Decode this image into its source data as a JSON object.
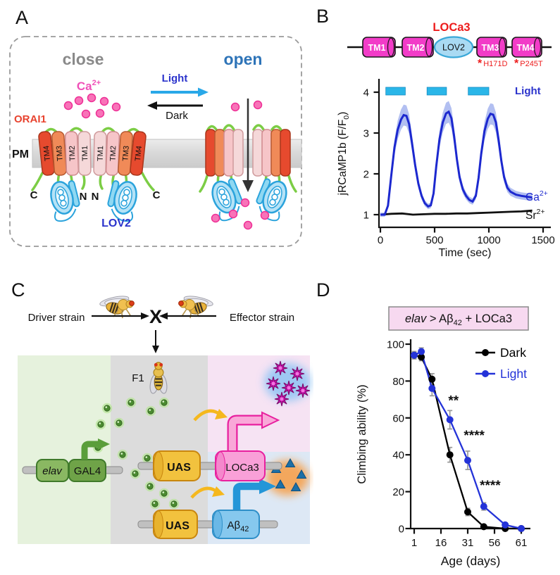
{
  "panels": {
    "A": {
      "label": "A",
      "close": "close",
      "open": "open",
      "ca": {
        "base": "Ca",
        "sup": "2+"
      },
      "light": "Light",
      "dark": "Dark",
      "orai1": "ORAI1",
      "pm": "PM",
      "c_left": "C",
      "n_left": "N",
      "n_right": "N",
      "c_right": "C",
      "lov2": "LOV2",
      "tm": [
        "TM4",
        "TM3",
        "TM2",
        "TM1",
        "TM1",
        "TM2",
        "TM3",
        "TM4"
      ],
      "colors": {
        "tm4": "#e64a2e",
        "tm3": "#f08a58",
        "tm2": "#f6c5c8",
        "tm1": "#f5d8d9",
        "loop": "#7ccd45",
        "lov2_fill": "#b5e2f6",
        "lov2_edge": "#2ba3dc",
        "ion": "#f873b8",
        "ion_edge": "#ee2f95",
        "membrane": "#dcdcdc",
        "close_text": "#8a8a8a",
        "open_text": "#2e74b8",
        "light_text": "#2b33cc",
        "light_arrow": "#29a8e8",
        "orai1_text": "#e8432f",
        "ca_text": "#f050b8",
        "lov2_text": "#2b33cc"
      }
    },
    "B": {
      "label": "B",
      "construct": {
        "title": "LOCa3",
        "tm": [
          "TM1",
          "TM2",
          "TM3",
          "TM4"
        ],
        "lov2": "LOV2",
        "mut1_star": "*",
        "mut1": "H171D",
        "mut2_star": "*",
        "mut2": "P245T",
        "colors": {
          "tm_fill": "#f23cc8",
          "tm_edge": "#181818",
          "lov2_fill": "#a9daf3",
          "lov2_edge": "#3aa8d8",
          "title_text": "#ed1c1c",
          "mut_text": "#ed1c1c"
        }
      }
    },
    "C": {
      "label": "C",
      "driver": "Driver strain",
      "cross": "X",
      "effector": "Effector strain",
      "f1": "F1",
      "elav": "elav",
      "gal4": "GAL4",
      "uas_top": "UAS",
      "loca3": "LOCa3",
      "uas_bottom": "UAS",
      "abeta": {
        "base": "Aβ",
        "sub": "42"
      },
      "colors": {
        "bg_green": "#e6f2dd",
        "bg_gray": "#dcdcdc",
        "bg_pink": "#f6e3f3",
        "bg_blue": "#dde8f5",
        "elav_fill": "#8ab862",
        "gal4_fill": "#6fa348",
        "gene_edge": "#3f7a2a",
        "uas_fill": "#f2c23e",
        "uas_edge": "#c8860f",
        "loca3_fill": "#f9a0d8",
        "loca3_edge": "#e8209f",
        "abeta_fill": "#86c8ee",
        "abeta_edge": "#2e8fc8",
        "rod_fill": "#c0c0c0",
        "rod_edge": "#8a8a8a",
        "dot_fill": "#4a8a30",
        "dot_glow": "#b8e49a",
        "star_fill": "#c410a8",
        "star_glow": "#8fc4f4",
        "tri_fill": "#1d6fa6",
        "tri_glow": "#f6a14e",
        "yellow_arrow": "#f5b81e",
        "green_arrow": "#5a9e3a",
        "pink_arrow": "#f9a8d8",
        "pink_arrow_edge": "#e8209f",
        "blue_arrow": "#2496d8"
      }
    },
    "D": {
      "label": "D",
      "banner": {
        "italic": "elav",
        "mid": " > Aβ",
        "sub": "42",
        "end": " + LOCa3",
        "fill": "#f7d9f0",
        "edge": "#8a8a8a"
      }
    }
  },
  "chart_data": [
    {
      "id": "panelB-trace",
      "type": "line",
      "xlabel": "Time (sec)",
      "ylabel_parts": {
        "pre": "jRCaMP1b (F/F",
        "sub": "0",
        "post": ")"
      },
      "xlim": [
        0,
        1500
      ],
      "ylim": [
        0.9,
        4.4
      ],
      "xticks": [
        0,
        500,
        1000,
        1500
      ],
      "yticks": [
        1,
        2,
        3,
        4
      ],
      "grid": false,
      "light_bars": {
        "label": "Light",
        "color": "#2ab6e8",
        "label_color": "#2b33cc",
        "intervals_sec": [
          [
            50,
            230
          ],
          [
            430,
            610
          ],
          [
            810,
            1000
          ]
        ]
      },
      "series": [
        {
          "name": "Ca2+",
          "label": {
            "base": "Ca",
            "sup": "2+"
          },
          "color": "#1c28cf",
          "band_color": "#aab8ef",
          "points": [
            [
              0,
              1.0
            ],
            [
              40,
              1.0
            ],
            [
              70,
              1.22
            ],
            [
              100,
              1.95
            ],
            [
              130,
              2.65
            ],
            [
              160,
              3.08
            ],
            [
              190,
              3.33
            ],
            [
              215,
              3.44
            ],
            [
              240,
              3.42
            ],
            [
              265,
              3.22
            ],
            [
              290,
              2.78
            ],
            [
              320,
              2.22
            ],
            [
              350,
              1.76
            ],
            [
              380,
              1.46
            ],
            [
              410,
              1.28
            ],
            [
              440,
              1.2
            ],
            [
              465,
              1.23
            ],
            [
              490,
              1.52
            ],
            [
              515,
              2.18
            ],
            [
              545,
              2.85
            ],
            [
              575,
              3.26
            ],
            [
              605,
              3.48
            ],
            [
              630,
              3.52
            ],
            [
              655,
              3.36
            ],
            [
              680,
              2.92
            ],
            [
              705,
              2.36
            ],
            [
              730,
              1.92
            ],
            [
              760,
              1.62
            ],
            [
              790,
              1.46
            ],
            [
              820,
              1.36
            ],
            [
              850,
              1.32
            ],
            [
              880,
              1.46
            ],
            [
              905,
              1.9
            ],
            [
              930,
              2.5
            ],
            [
              960,
              3.05
            ],
            [
              990,
              3.35
            ],
            [
              1015,
              3.47
            ],
            [
              1040,
              3.45
            ],
            [
              1065,
              3.26
            ],
            [
              1090,
              2.82
            ],
            [
              1115,
              2.32
            ],
            [
              1140,
              1.92
            ],
            [
              1170,
              1.66
            ],
            [
              1200,
              1.56
            ],
            [
              1250,
              1.49
            ],
            [
              1300,
              1.46
            ],
            [
              1350,
              1.44
            ],
            [
              1400,
              1.42
            ]
          ]
        },
        {
          "name": "Sr2+",
          "label": {
            "base": "Sr",
            "sup": "2+"
          },
          "color": "#111111",
          "points": [
            [
              0,
              1.0
            ],
            [
              100,
              1.02
            ],
            [
              200,
              1.03
            ],
            [
              300,
              1.0
            ],
            [
              400,
              1.01
            ],
            [
              500,
              1.02
            ],
            [
              600,
              1.02
            ],
            [
              700,
              1.03
            ],
            [
              800,
              1.03
            ],
            [
              900,
              1.04
            ],
            [
              1000,
              1.05
            ],
            [
              1100,
              1.06
            ],
            [
              1200,
              1.07
            ],
            [
              1300,
              1.08
            ],
            [
              1400,
              1.1
            ]
          ]
        }
      ]
    },
    {
      "id": "panelD-climbing",
      "type": "line-scatter",
      "title_box": "elav > Aβ42 + LOCa3",
      "xlabel": "Age (days)",
      "ylabel": "Climbing ability (%)",
      "ylim": [
        0,
        100
      ],
      "yticks": [
        0,
        20,
        40,
        60,
        80,
        100
      ],
      "xtick_days": [
        1,
        16,
        31,
        56,
        61
      ],
      "grid": false,
      "legend_position": "top-right",
      "series": [
        {
          "name": "Dark",
          "color": "#000000",
          "x_days": [
            1,
            5,
            11,
            21,
            31,
            46,
            58,
            61
          ],
          "y": [
            94,
            93,
            81,
            40,
            9,
            1,
            0,
            0
          ],
          "err": [
            2,
            2,
            3,
            4,
            2,
            1,
            0,
            0
          ]
        },
        {
          "name": "Light",
          "color": "#2433d8",
          "x_days": [
            1,
            5,
            11,
            21,
            31,
            46,
            58,
            61
          ],
          "y": [
            94,
            96,
            76,
            59,
            37,
            12,
            2,
            0
          ],
          "err": [
            2,
            2,
            4,
            5,
            5,
            2,
            1,
            0
          ]
        }
      ],
      "annotations": [
        {
          "text": "**",
          "day": 23,
          "value": 67
        },
        {
          "text": "****",
          "day": 37,
          "value": 48
        },
        {
          "text": "****",
          "day": 52,
          "value": 21
        }
      ]
    }
  ]
}
